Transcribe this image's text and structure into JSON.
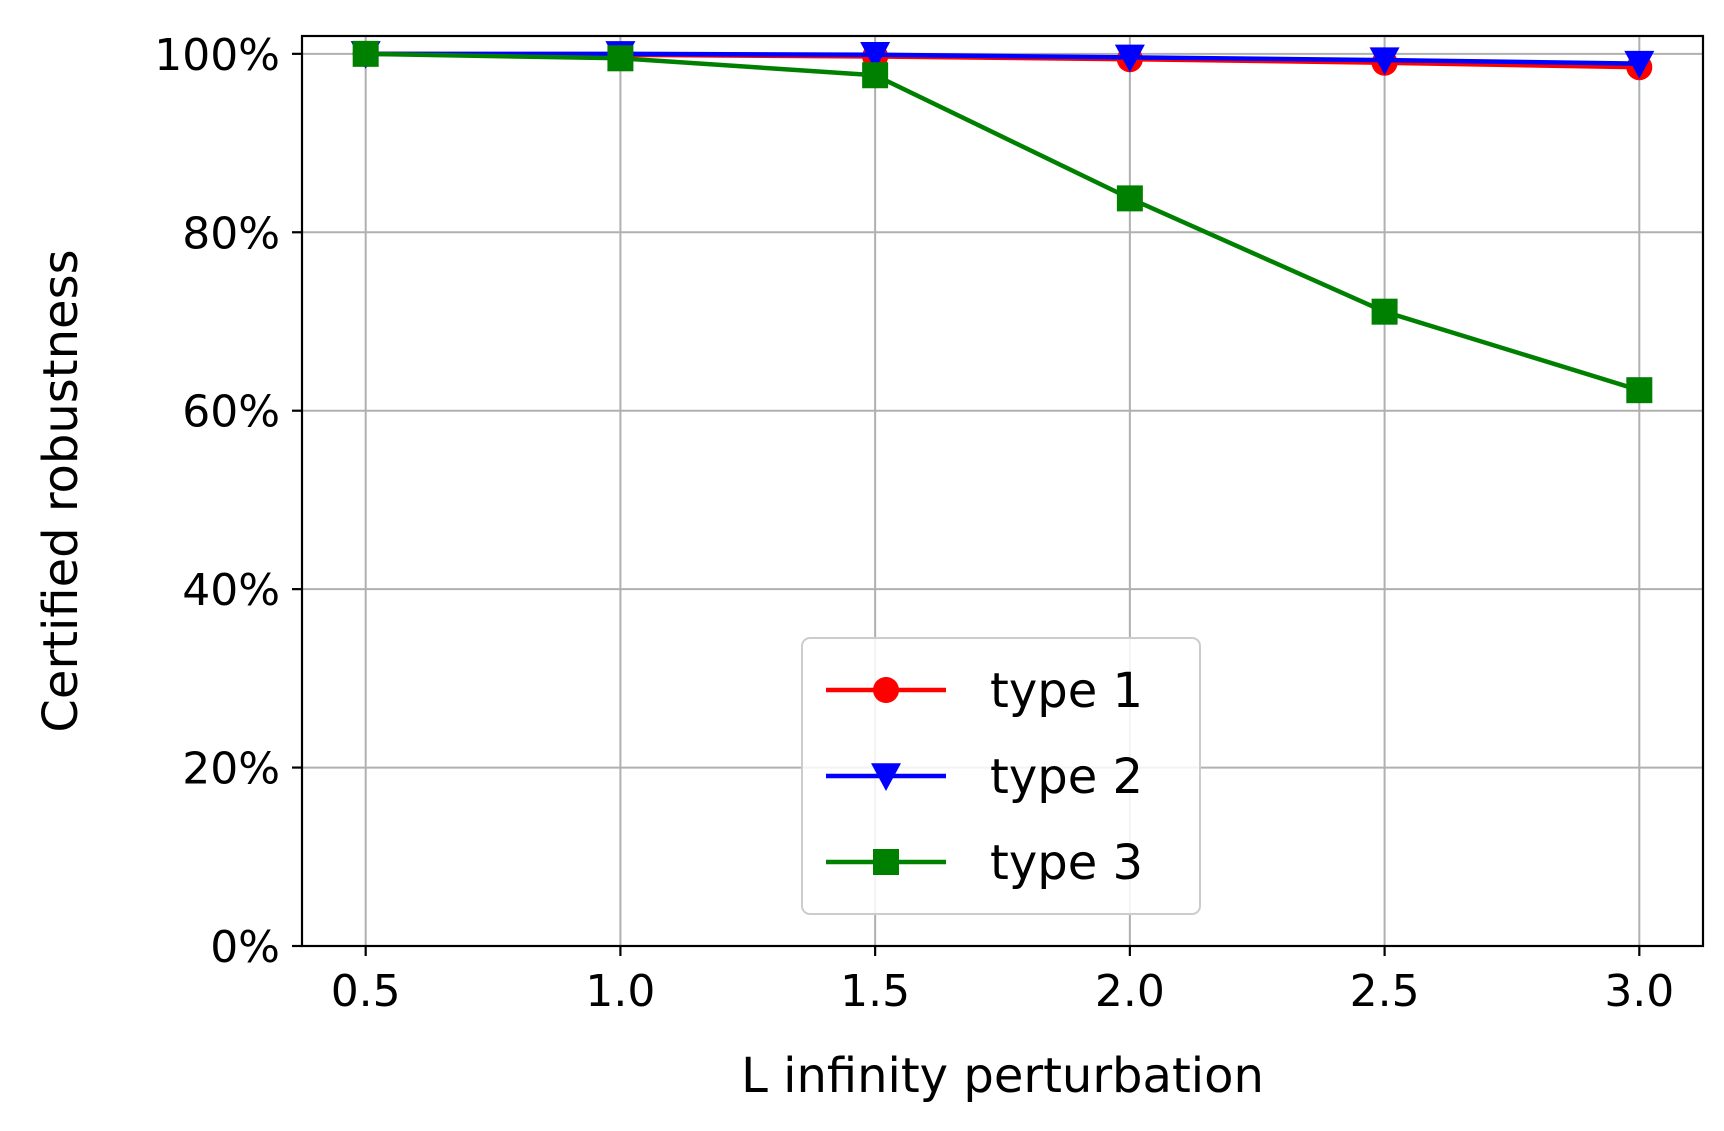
{
  "chart_data": {
    "type": "line",
    "title": "",
    "xlabel": "L infinity perturbation",
    "ylabel": "Certified robustness",
    "x": [
      0.5,
      1.0,
      1.5,
      2.0,
      2.5,
      3.0
    ],
    "x_tick_labels": [
      "0.5",
      "1.0",
      "1.5",
      "2.0",
      "2.5",
      "3.0"
    ],
    "y_ticks": [
      0,
      20,
      40,
      60,
      80,
      100
    ],
    "y_tick_labels": [
      "0%",
      "20%",
      "40%",
      "60%",
      "80%",
      "100%"
    ],
    "xlim": [
      0.375,
      3.125
    ],
    "ylim": [
      0,
      102
    ],
    "grid": true,
    "legend_position": "lower-center",
    "series": [
      {
        "name": "type 1",
        "color": "#ff0000",
        "marker": "circle",
        "values": [
          100,
          99.9,
          99.7,
          99.4,
          99.0,
          98.5
        ]
      },
      {
        "name": "type 2",
        "color": "#0000ff",
        "marker": "triangle-down",
        "values": [
          100,
          100,
          99.9,
          99.6,
          99.3,
          98.9
        ]
      },
      {
        "name": "type 3",
        "color": "#008000",
        "marker": "square",
        "values": [
          100,
          99.5,
          97.6,
          83.8,
          71.1,
          62.3
        ]
      }
    ]
  }
}
